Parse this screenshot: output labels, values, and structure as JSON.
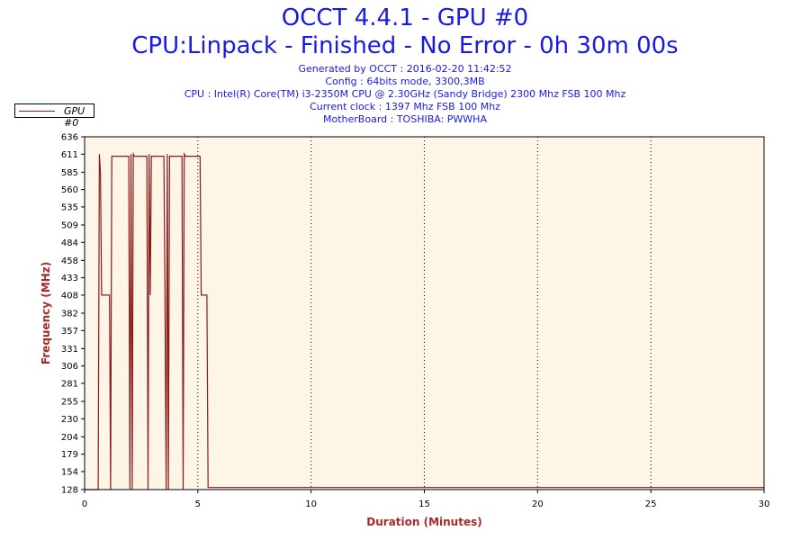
{
  "header": {
    "title": "OCCT 4.4.1 - GPU #0",
    "subtitle": "CPU:Linpack - Finished - No Error - 0h 30m 00s",
    "generated": "Generated by OCCT : 2016-02-20 11:42:52",
    "config": "Config : 64bits mode, 3300,3MB",
    "cpu": "CPU : Intel(R) Core(TM) i3-2350M CPU @ 2.30GHz (Sandy Bridge) 2300 Mhz FSB 100 Mhz",
    "clock": "Current clock : 1397 Mhz FSB 100 Mhz",
    "motherboard": "MotherBoard : TOSHIBA: PWWHA"
  },
  "colors": {
    "title": "#1a1ae6",
    "series": "#8b1a1a",
    "plot_background": "#fdf5e6",
    "axis_label": "#a52a2a"
  },
  "chart_data": {
    "type": "line",
    "xlabel": "Duration (Minutes)",
    "ylabel": "Frequency (MHz)",
    "xlim": [
      0,
      30
    ],
    "ylim": [
      128,
      636
    ],
    "xticks": [
      0,
      5,
      10,
      15,
      20,
      25,
      30
    ],
    "yticks": [
      128,
      154,
      179,
      204,
      230,
      255,
      281,
      306,
      331,
      357,
      382,
      408,
      433,
      458,
      484,
      509,
      535,
      560,
      585,
      611,
      636
    ],
    "grid": "vertical dotted at major x ticks",
    "legend_position": "top-left",
    "series": [
      {
        "name": "GPU #0",
        "x": [
          0,
          0.6,
          0.65,
          0.7,
          0.75,
          0.8,
          1.1,
          1.15,
          1.2,
          1.25,
          1.3,
          1.95,
          2.0,
          2.05,
          2.1,
          2.15,
          2.2,
          2.75,
          2.8,
          2.85,
          2.9,
          2.95,
          3.0,
          3.5,
          3.55,
          3.6,
          3.65,
          3.7,
          3.75,
          4.3,
          4.35,
          4.4,
          4.45,
          4.5,
          5.1,
          5.15,
          5.2,
          5.3,
          5.4,
          5.45,
          30
        ],
        "y": [
          128,
          128,
          611,
          585,
          408,
          408,
          408,
          128,
          608,
          608,
          608,
          608,
          128,
          611,
          128,
          611,
          608,
          608,
          128,
          611,
          408,
          608,
          608,
          608,
          408,
          128,
          611,
          128,
          608,
          608,
          128,
          611,
          608,
          608,
          608,
          408,
          408,
          408,
          408,
          131,
          131
        ]
      }
    ]
  }
}
